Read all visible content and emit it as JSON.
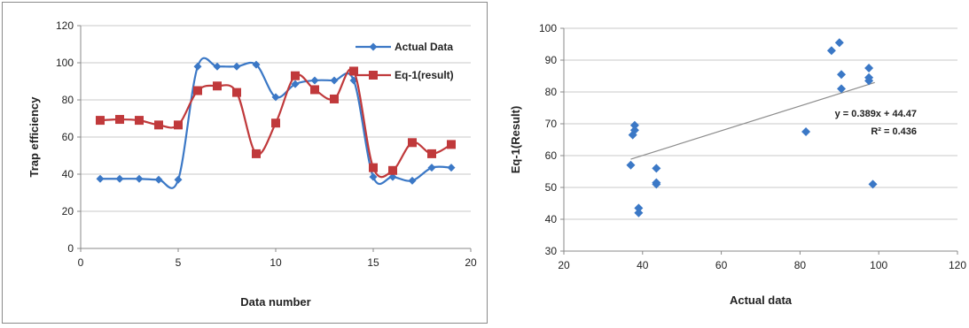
{
  "chart_data": [
    {
      "type": "line",
      "xlabel": "Data number",
      "ylabel": "Trap efficiency",
      "xlim": [
        0,
        20
      ],
      "ylim": [
        0,
        120
      ],
      "xticks": [
        "0",
        "5",
        "10",
        "15",
        "20"
      ],
      "yticks": [
        "0",
        "20",
        "40",
        "60",
        "80",
        "100",
        "120"
      ],
      "grid": "horizontal",
      "legend_position": "top-right",
      "x": [
        1,
        2,
        3,
        4,
        5,
        6,
        7,
        8,
        9,
        10,
        11,
        12,
        13,
        14,
        15,
        16,
        17,
        18,
        19
      ],
      "series": [
        {
          "name": "Actual Data",
          "color": "#3b78c6",
          "marker": "diamond",
          "values": [
            37.5,
            37.5,
            37.5,
            37,
            37,
            98,
            98,
            98,
            99,
            81.5,
            88.5,
            90.5,
            90.5,
            90.5,
            38.5,
            38.5,
            36.5,
            43.5,
            43.5
          ]
        },
        {
          "name": "Eq-1(result)",
          "color": "#c0393b",
          "marker": "square",
          "values": [
            69,
            69.5,
            69,
            66.5,
            66.5,
            85,
            87.5,
            84,
            51,
            67.5,
            93,
            85.5,
            80.5,
            95.5,
            43.5,
            42,
            57,
            51,
            56
          ]
        }
      ]
    },
    {
      "type": "scatter",
      "xlabel": "Actual data",
      "ylabel": "Eq-1(Result)",
      "xlim": [
        20,
        120
      ],
      "ylim": [
        30,
        100
      ],
      "xticks": [
        "20",
        "40",
        "60",
        "80",
        "100",
        "120"
      ],
      "yticks": [
        "30",
        "40",
        "50",
        "60",
        "70",
        "80",
        "90",
        "100"
      ],
      "grid": "horizontal",
      "marker_color": "#3b78c6",
      "points": [
        [
          37,
          57
        ],
        [
          37.5,
          66.5
        ],
        [
          38,
          68
        ],
        [
          38,
          69.5
        ],
        [
          39,
          43.5
        ],
        [
          39,
          42
        ],
        [
          43.5,
          56
        ],
        [
          43.5,
          51
        ],
        [
          43.5,
          51.5
        ],
        [
          81.5,
          67.5
        ],
        [
          88,
          93
        ],
        [
          90,
          95.5
        ],
        [
          90.5,
          85.5
        ],
        [
          90.5,
          81
        ],
        [
          97.5,
          87.5
        ],
        [
          97.5,
          84.5
        ],
        [
          97.5,
          83.5
        ],
        [
          98.5,
          51
        ]
      ],
      "trendline": {
        "slope": 0.389,
        "intercept": 44.47,
        "x_range": [
          37,
          99
        ],
        "color": "#8c8c8c",
        "equation": "y = 0.389x + 44.47",
        "r2_label": "R² = 0.436"
      }
    }
  ]
}
